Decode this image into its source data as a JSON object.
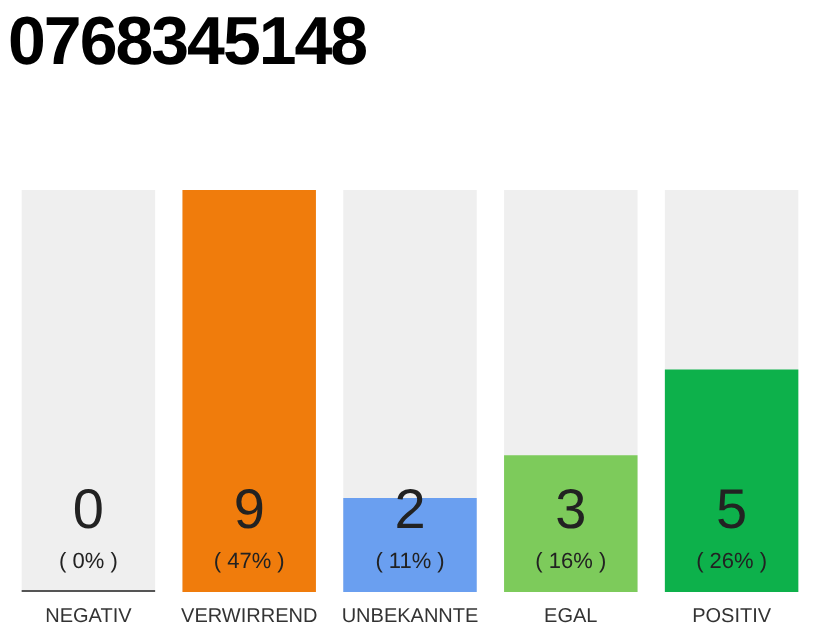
{
  "chart_data": {
    "type": "bar",
    "title": "0768345148",
    "categories": [
      "NEGATIV",
      "VERWIRREND",
      "UNBEKANNTE",
      "EGAL",
      "POSITIV"
    ],
    "values": [
      0,
      47,
      11,
      16,
      26
    ],
    "colors": [
      "#555555",
      "#f07c0c",
      "#6a9ff0",
      "#7dcb5b",
      "#0db14b"
    ],
    "value_labels": [
      "( 0% )",
      "( 47% )",
      "( 11% )",
      "( 16% )",
      "( 26% )"
    ],
    "annotations": [
      "0",
      "9",
      "2",
      "3",
      "5"
    ],
    "grid": false,
    "legend": false
  }
}
